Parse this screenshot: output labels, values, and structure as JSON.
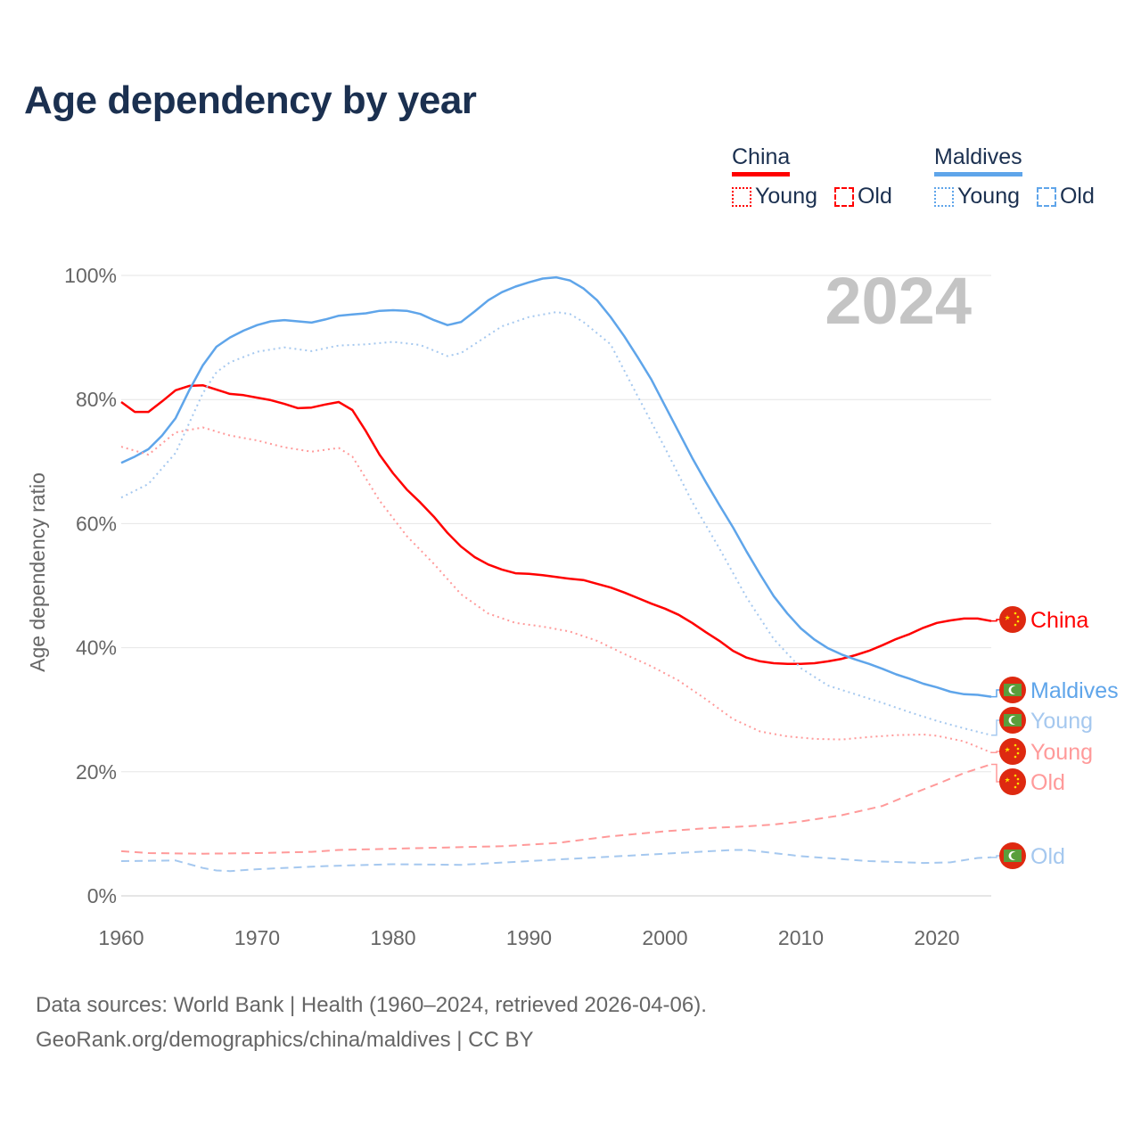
{
  "title": "Age dependency by year",
  "legend": {
    "groups": [
      {
        "country": "China",
        "color": "#ff0000",
        "light": "#ff9a9a",
        "items": [
          "Young",
          "Old"
        ]
      },
      {
        "country": "Maldives",
        "color": "#5fa5ea",
        "light": "#a5c8ef",
        "items": [
          "Young",
          "Old"
        ]
      }
    ]
  },
  "source": {
    "line1": "Data sources: World Bank | Health (1960–2024, retrieved 2026-04-06).",
    "line2": "GeoRank.org/demographics/china/maldives | CC BY"
  },
  "chart_data": {
    "type": "line",
    "title": "Age dependency by year",
    "xlabel": "",
    "ylabel": "Age dependency ratio",
    "year_watermark": "2024",
    "xlim": [
      1960,
      2024
    ],
    "ylim": [
      0,
      100
    ],
    "x_ticks": [
      "1960",
      "1970",
      "1980",
      "1990",
      "2000",
      "2010",
      "2020"
    ],
    "y_ticks": [
      "0%",
      "20%",
      "40%",
      "60%",
      "80%",
      "100%"
    ],
    "grid": true,
    "series": [
      {
        "name": "China",
        "label": "China",
        "flag": "china",
        "color": "#ff0000",
        "style": "solid",
        "points": [
          [
            1960,
            79.6
          ],
          [
            1961,
            78.0
          ],
          [
            1962,
            78.0
          ],
          [
            1963,
            79.7
          ],
          [
            1964,
            81.5
          ],
          [
            1965,
            82.2
          ],
          [
            1966,
            82.3
          ],
          [
            1967,
            81.6
          ],
          [
            1968,
            80.9
          ],
          [
            1969,
            80.7
          ],
          [
            1970,
            80.3
          ],
          [
            1971,
            79.9
          ],
          [
            1972,
            79.3
          ],
          [
            1973,
            78.6
          ],
          [
            1974,
            78.7
          ],
          [
            1975,
            79.2
          ],
          [
            1976,
            79.6
          ],
          [
            1977,
            78.3
          ],
          [
            1978,
            74.9
          ],
          [
            1979,
            71.1
          ],
          [
            1980,
            68.1
          ],
          [
            1981,
            65.5
          ],
          [
            1982,
            63.4
          ],
          [
            1983,
            61.1
          ],
          [
            1984,
            58.5
          ],
          [
            1985,
            56.3
          ],
          [
            1986,
            54.6
          ],
          [
            1987,
            53.4
          ],
          [
            1988,
            52.6
          ],
          [
            1989,
            52.0
          ],
          [
            1990,
            51.9
          ],
          [
            1991,
            51.7
          ],
          [
            1992,
            51.4
          ],
          [
            1993,
            51.1
          ],
          [
            1994,
            50.9
          ],
          [
            1995,
            50.3
          ],
          [
            1996,
            49.7
          ],
          [
            1997,
            48.9
          ],
          [
            1998,
            48.0
          ],
          [
            1999,
            47.1
          ],
          [
            2000,
            46.3
          ],
          [
            2001,
            45.3
          ],
          [
            2002,
            44.0
          ],
          [
            2003,
            42.5
          ],
          [
            2004,
            41.1
          ],
          [
            2005,
            39.5
          ],
          [
            2006,
            38.4
          ],
          [
            2007,
            37.8
          ],
          [
            2008,
            37.5
          ],
          [
            2009,
            37.4
          ],
          [
            2010,
            37.4
          ],
          [
            2011,
            37.5
          ],
          [
            2012,
            37.8
          ],
          [
            2013,
            38.2
          ],
          [
            2014,
            38.8
          ],
          [
            2015,
            39.5
          ],
          [
            2016,
            40.4
          ],
          [
            2017,
            41.4
          ],
          [
            2018,
            42.2
          ],
          [
            2019,
            43.2
          ],
          [
            2020,
            44.0
          ],
          [
            2021,
            44.4
          ],
          [
            2022,
            44.7
          ],
          [
            2023,
            44.7
          ],
          [
            2024,
            44.3
          ]
        ]
      },
      {
        "name": "Maldives",
        "label": "Maldives",
        "flag": "maldives",
        "color": "#5fa5ea",
        "style": "solid",
        "points": [
          [
            1960,
            69.8
          ],
          [
            1961,
            70.8
          ],
          [
            1962,
            72.0
          ],
          [
            1963,
            74.2
          ],
          [
            1964,
            77.0
          ],
          [
            1965,
            81.5
          ],
          [
            1966,
            85.5
          ],
          [
            1967,
            88.5
          ],
          [
            1968,
            90.0
          ],
          [
            1969,
            91.1
          ],
          [
            1970,
            92.0
          ],
          [
            1971,
            92.6
          ],
          [
            1972,
            92.8
          ],
          [
            1973,
            92.6
          ],
          [
            1974,
            92.4
          ],
          [
            1975,
            92.9
          ],
          [
            1976,
            93.5
          ],
          [
            1977,
            93.7
          ],
          [
            1978,
            93.9
          ],
          [
            1979,
            94.3
          ],
          [
            1980,
            94.4
          ],
          [
            1981,
            94.3
          ],
          [
            1982,
            93.8
          ],
          [
            1983,
            92.8
          ],
          [
            1984,
            92.0
          ],
          [
            1985,
            92.5
          ],
          [
            1986,
            94.2
          ],
          [
            1987,
            96.0
          ],
          [
            1988,
            97.3
          ],
          [
            1989,
            98.2
          ],
          [
            1990,
            98.9
          ],
          [
            1991,
            99.5
          ],
          [
            1992,
            99.7
          ],
          [
            1993,
            99.2
          ],
          [
            1994,
            97.9
          ],
          [
            1995,
            96.0
          ],
          [
            1996,
            93.3
          ],
          [
            1997,
            90.2
          ],
          [
            1998,
            86.8
          ],
          [
            1999,
            83.2
          ],
          [
            2000,
            79.0
          ],
          [
            2001,
            74.8
          ],
          [
            2002,
            70.6
          ],
          [
            2003,
            66.7
          ],
          [
            2004,
            63.0
          ],
          [
            2005,
            59.4
          ],
          [
            2006,
            55.5
          ],
          [
            2007,
            51.8
          ],
          [
            2008,
            48.3
          ],
          [
            2009,
            45.5
          ],
          [
            2010,
            43.1
          ],
          [
            2011,
            41.3
          ],
          [
            2012,
            39.9
          ],
          [
            2013,
            38.9
          ],
          [
            2014,
            38.1
          ],
          [
            2015,
            37.4
          ],
          [
            2016,
            36.6
          ],
          [
            2017,
            35.7
          ],
          [
            2018,
            35.0
          ],
          [
            2019,
            34.2
          ],
          [
            2020,
            33.6
          ],
          [
            2021,
            32.9
          ],
          [
            2022,
            32.5
          ],
          [
            2023,
            32.4
          ],
          [
            2024,
            32.1
          ]
        ]
      },
      {
        "name": "Maldives Young",
        "label": "Young",
        "flag": "maldives",
        "color": "#a5c8ef",
        "style": "dotted",
        "points": [
          [
            1960,
            64.2
          ],
          [
            1962,
            66.4
          ],
          [
            1964,
            71.4
          ],
          [
            1966,
            81.0
          ],
          [
            1967,
            84.4
          ],
          [
            1968,
            86.0
          ],
          [
            1970,
            87.7
          ],
          [
            1972,
            88.4
          ],
          [
            1974,
            87.8
          ],
          [
            1976,
            88.7
          ],
          [
            1978,
            88.9
          ],
          [
            1980,
            89.3
          ],
          [
            1982,
            88.8
          ],
          [
            1984,
            87.0
          ],
          [
            1985,
            87.5
          ],
          [
            1988,
            91.8
          ],
          [
            1990,
            93.3
          ],
          [
            1992,
            94.1
          ],
          [
            1993,
            93.8
          ],
          [
            1994,
            92.5
          ],
          [
            1996,
            88.9
          ],
          [
            1998,
            80.5
          ],
          [
            2000,
            72.2
          ],
          [
            2002,
            63.5
          ],
          [
            2004,
            56.0
          ],
          [
            2006,
            48.1
          ],
          [
            2008,
            41.4
          ],
          [
            2010,
            36.7
          ],
          [
            2012,
            33.9
          ],
          [
            2014,
            32.5
          ],
          [
            2016,
            31.1
          ],
          [
            2018,
            29.6
          ],
          [
            2020,
            28.2
          ],
          [
            2022,
            27.0
          ],
          [
            2024,
            25.9
          ]
        ]
      },
      {
        "name": "China Young",
        "label": "Young",
        "flag": "china",
        "color": "#ff9a9a",
        "style": "dotted",
        "points": [
          [
            1960,
            72.4
          ],
          [
            1962,
            71.1
          ],
          [
            1964,
            74.7
          ],
          [
            1966,
            75.5
          ],
          [
            1968,
            74.2
          ],
          [
            1970,
            73.4
          ],
          [
            1972,
            72.3
          ],
          [
            1974,
            71.6
          ],
          [
            1976,
            72.2
          ],
          [
            1977,
            70.8
          ],
          [
            1979,
            63.7
          ],
          [
            1981,
            58.0
          ],
          [
            1983,
            53.5
          ],
          [
            1985,
            48.6
          ],
          [
            1987,
            45.5
          ],
          [
            1989,
            44.0
          ],
          [
            1991,
            43.4
          ],
          [
            1993,
            42.6
          ],
          [
            1995,
            41.1
          ],
          [
            1997,
            39.0
          ],
          [
            1999,
            37.0
          ],
          [
            2001,
            34.7
          ],
          [
            2003,
            31.7
          ],
          [
            2005,
            28.5
          ],
          [
            2007,
            26.5
          ],
          [
            2009,
            25.7
          ],
          [
            2011,
            25.3
          ],
          [
            2013,
            25.2
          ],
          [
            2015,
            25.6
          ],
          [
            2017,
            25.9
          ],
          [
            2019,
            26.0
          ],
          [
            2020,
            25.8
          ],
          [
            2022,
            24.9
          ],
          [
            2024,
            23.1
          ]
        ]
      },
      {
        "name": "China Old",
        "label": "Old",
        "flag": "china",
        "color": "#ff9a9a",
        "style": "dashed",
        "points": [
          [
            1960,
            7.2
          ],
          [
            1962,
            6.9
          ],
          [
            1966,
            6.8
          ],
          [
            1970,
            6.9
          ],
          [
            1974,
            7.1
          ],
          [
            1976,
            7.4
          ],
          [
            1980,
            7.6
          ],
          [
            1984,
            7.8
          ],
          [
            1988,
            8.0
          ],
          [
            1992,
            8.5
          ],
          [
            1996,
            9.6
          ],
          [
            2000,
            10.4
          ],
          [
            2003,
            10.9
          ],
          [
            2006,
            11.2
          ],
          [
            2008,
            11.5
          ],
          [
            2010,
            12.0
          ],
          [
            2013,
            13.0
          ],
          [
            2016,
            14.5
          ],
          [
            2018,
            16.3
          ],
          [
            2020,
            18.0
          ],
          [
            2022,
            19.8
          ],
          [
            2024,
            21.2
          ]
        ]
      },
      {
        "name": "Maldives Old",
        "label": "Old",
        "flag": "maldives",
        "color": "#a5c8ef",
        "style": "dashed",
        "points": [
          [
            1960,
            5.6
          ],
          [
            1964,
            5.7
          ],
          [
            1965,
            5.1
          ],
          [
            1966,
            4.5
          ],
          [
            1967,
            4.1
          ],
          [
            1968,
            4.0
          ],
          [
            1970,
            4.3
          ],
          [
            1975,
            4.8
          ],
          [
            1980,
            5.1
          ],
          [
            1985,
            5.0
          ],
          [
            1990,
            5.6
          ],
          [
            1995,
            6.2
          ],
          [
            2000,
            6.8
          ],
          [
            2005,
            7.4
          ],
          [
            2006,
            7.4
          ],
          [
            2008,
            6.9
          ],
          [
            2010,
            6.4
          ],
          [
            2015,
            5.6
          ],
          [
            2019,
            5.3
          ],
          [
            2021,
            5.4
          ],
          [
            2023,
            6.1
          ],
          [
            2024,
            6.2
          ]
        ]
      }
    ]
  }
}
